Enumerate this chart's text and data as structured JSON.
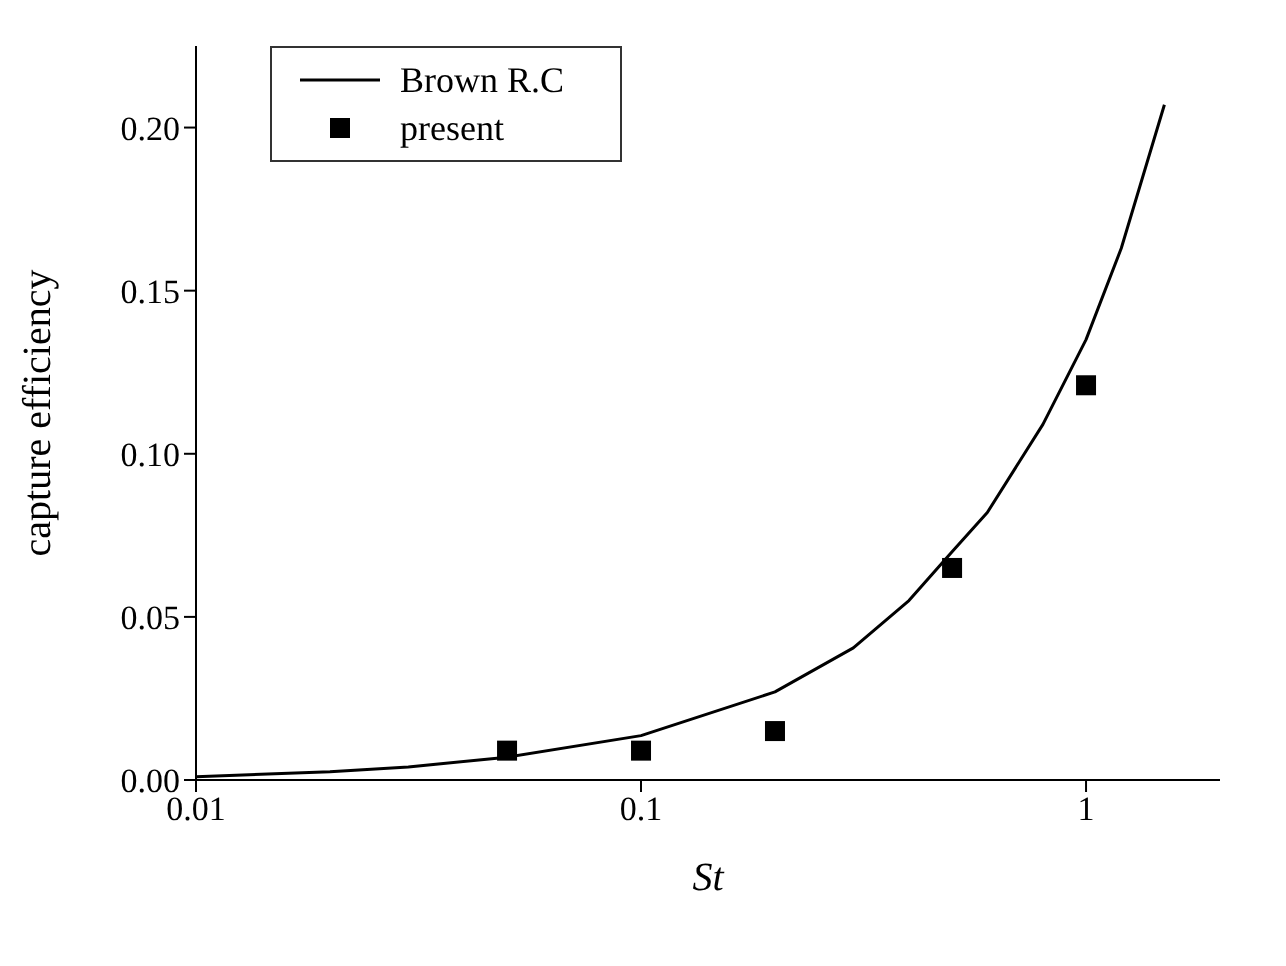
{
  "chart_data": {
    "type": "line",
    "xlabel": "St",
    "ylabel": "capture efficiency",
    "log": "x",
    "xlim": [
      0.01,
      2
    ],
    "xticks": [
      0.01,
      0.1,
      1
    ],
    "ylim": [
      0,
      0.225
    ],
    "yticks": [
      {
        "value": 0,
        "label": "0.00"
      },
      {
        "value": 0.05,
        "label": "0.05"
      },
      {
        "value": 0.1,
        "label": "0.10"
      },
      {
        "value": 0.15,
        "label": "0.15"
      },
      {
        "value": 0.2,
        "label": "0.20"
      }
    ],
    "grid": false,
    "legend": "top left",
    "series": [
      {
        "name": "Brown R.C",
        "type": "line",
        "color": "#000000",
        "marker": "none",
        "line_style": "solid",
        "x": [
          0.01,
          0.02,
          0.03,
          0.05,
          0.1,
          0.2,
          0.3,
          0.4,
          0.5,
          0.6,
          0.8,
          1,
          1.2,
          1.5
        ],
        "values": [
          0.001,
          0.0025,
          0.004,
          0.007,
          0.0136,
          0.027,
          0.0405,
          0.055,
          0.07,
          0.082,
          0.109,
          0.135,
          0.163,
          0.207
        ]
      },
      {
        "name": "present",
        "type": "scatter",
        "color": "#000000",
        "marker": "square",
        "x": [
          0.05,
          0.1,
          0.2,
          0.5,
          1
        ],
        "values": [
          0.009,
          0.009,
          0.015,
          0.065,
          0.121
        ]
      }
    ]
  }
}
